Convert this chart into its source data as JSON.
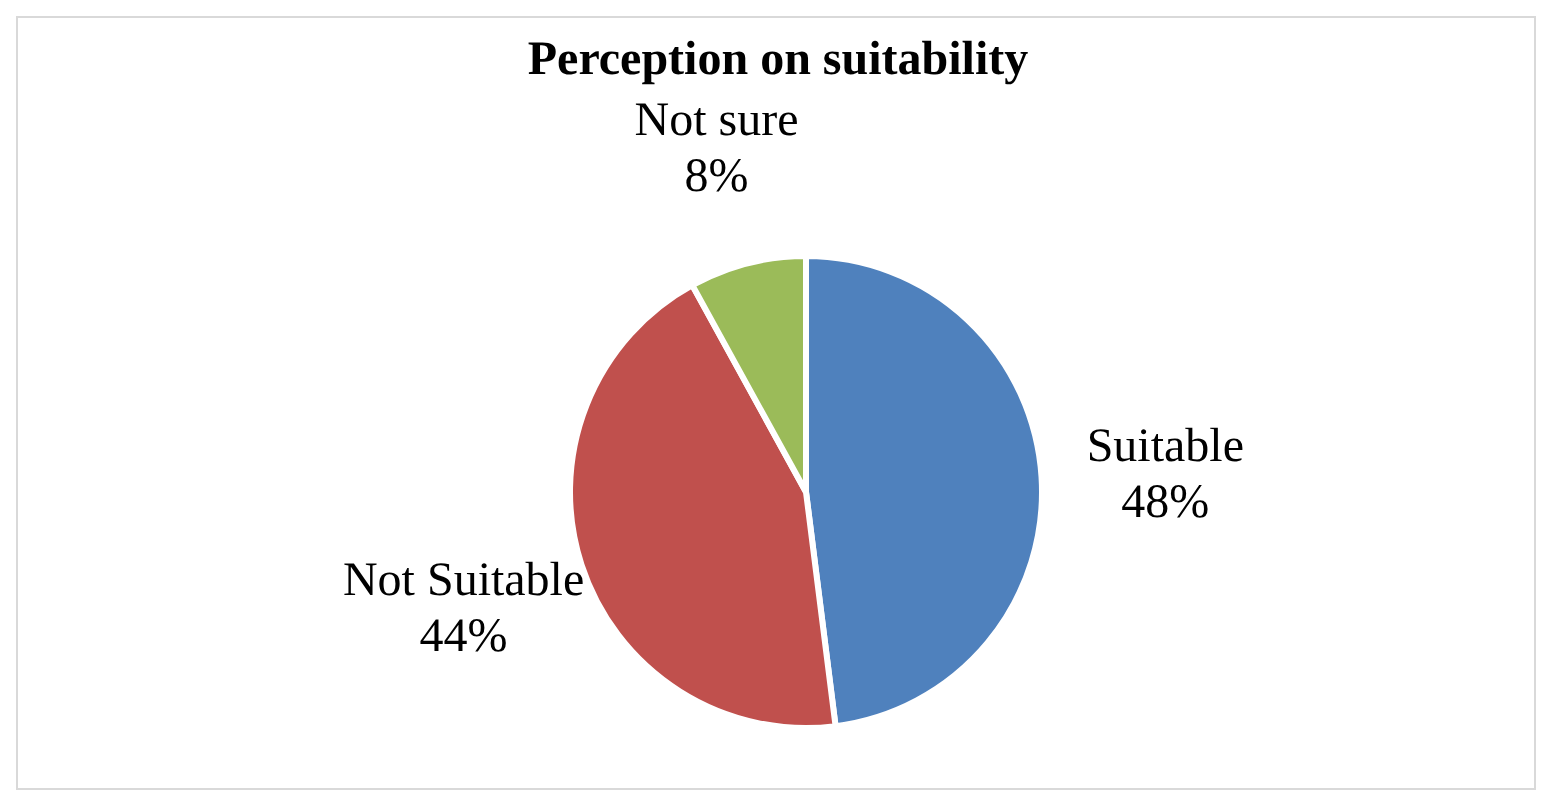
{
  "chart_data": {
    "type": "pie",
    "title": "Perception on suitability",
    "categories": [
      "Suitable",
      "Not Suitable",
      "Not sure"
    ],
    "values": [
      48,
      44,
      8
    ],
    "colors": [
      "#4f81bd",
      "#c0504d",
      "#9bbb59"
    ],
    "value_labels": [
      "48%",
      "44%",
      "8%"
    ],
    "legend": false
  }
}
